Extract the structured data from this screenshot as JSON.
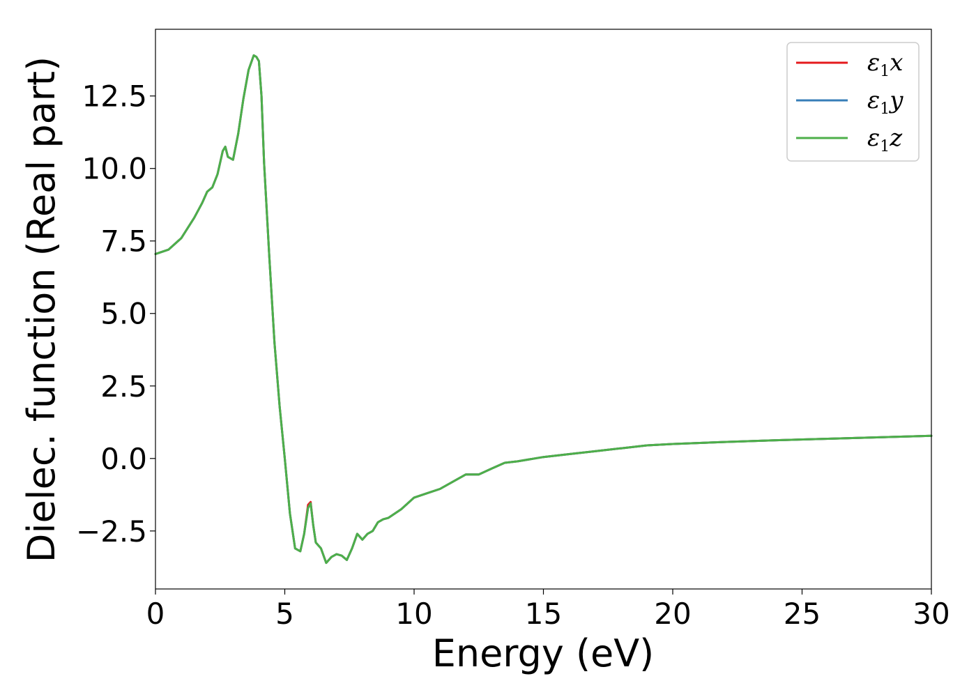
{
  "chart_data": {
    "type": "line",
    "title": "",
    "xlabel": "Energy (eV)",
    "ylabel": "Dielec. function (Real part)",
    "xlim": [
      0,
      30
    ],
    "ylim": [
      -4.5,
      14.8
    ],
    "xticks": [
      0,
      5,
      10,
      15,
      20,
      25,
      30
    ],
    "xtick_labels": [
      "0",
      "5",
      "10",
      "15",
      "20",
      "25",
      "30"
    ],
    "yticks": [
      -2.5,
      0.0,
      2.5,
      5.0,
      7.5,
      10.0,
      12.5
    ],
    "ytick_labels": [
      "−2.5",
      "0.0",
      "2.5",
      "5.0",
      "7.5",
      "10.0",
      "12.5"
    ],
    "grid": false,
    "legend_position": "top-right",
    "x": [
      0,
      0.5,
      1.0,
      1.5,
      1.8,
      2.0,
      2.2,
      2.4,
      2.6,
      2.7,
      2.8,
      3.0,
      3.2,
      3.4,
      3.6,
      3.8,
      3.9,
      4.0,
      4.1,
      4.2,
      4.4,
      4.6,
      4.8,
      5.0,
      5.2,
      5.4,
      5.6,
      5.75,
      5.9,
      6.0,
      6.1,
      6.2,
      6.4,
      6.6,
      6.8,
      7.0,
      7.2,
      7.4,
      7.6,
      7.8,
      8.0,
      8.2,
      8.4,
      8.6,
      8.8,
      9.0,
      9.5,
      10.0,
      10.5,
      11.0,
      11.5,
      12.0,
      12.5,
      13.0,
      13.5,
      14.0,
      15.0,
      16.0,
      17.0,
      18.0,
      19.0,
      20.0,
      22.0,
      24.0,
      26.0,
      28.0,
      30.0
    ],
    "series": [
      {
        "name": "ε₁x",
        "color": "#e41a1c",
        "values": [
          7.05,
          7.2,
          7.6,
          8.3,
          8.8,
          9.2,
          9.35,
          9.8,
          10.6,
          10.75,
          10.4,
          10.3,
          11.2,
          12.4,
          13.4,
          13.9,
          13.85,
          13.7,
          12.5,
          10.2,
          7.0,
          4.0,
          1.8,
          0.0,
          -1.9,
          -3.1,
          -3.2,
          -2.6,
          -1.6,
          -1.5,
          -2.3,
          -2.9,
          -3.1,
          -3.6,
          -3.4,
          -3.3,
          -3.35,
          -3.5,
          -3.1,
          -2.6,
          -2.8,
          -2.6,
          -2.5,
          -2.2,
          -2.1,
          -2.05,
          -1.75,
          -1.35,
          -1.2,
          -1.05,
          -0.8,
          -0.55,
          -0.55,
          -0.35,
          -0.15,
          -0.1,
          0.05,
          0.15,
          0.25,
          0.35,
          0.45,
          0.5,
          0.57,
          0.63,
          0.68,
          0.73,
          0.78
        ]
      },
      {
        "name": "ε₁y",
        "color": "#377eb8",
        "values": [
          7.05,
          7.2,
          7.6,
          8.3,
          8.8,
          9.2,
          9.35,
          9.8,
          10.6,
          10.75,
          10.4,
          10.3,
          11.2,
          12.4,
          13.4,
          13.9,
          13.85,
          13.7,
          12.5,
          10.2,
          7.0,
          4.0,
          1.8,
          0.0,
          -1.9,
          -3.1,
          -3.2,
          -2.6,
          -1.7,
          -1.55,
          -2.3,
          -2.9,
          -3.1,
          -3.6,
          -3.4,
          -3.3,
          -3.35,
          -3.5,
          -3.1,
          -2.6,
          -2.8,
          -2.6,
          -2.5,
          -2.2,
          -2.1,
          -2.05,
          -1.75,
          -1.35,
          -1.2,
          -1.05,
          -0.8,
          -0.55,
          -0.55,
          -0.35,
          -0.15,
          -0.1,
          0.05,
          0.15,
          0.25,
          0.35,
          0.45,
          0.5,
          0.57,
          0.63,
          0.68,
          0.73,
          0.78
        ]
      },
      {
        "name": "ε₁z",
        "color": "#4daf4a",
        "values": [
          7.05,
          7.2,
          7.6,
          8.3,
          8.8,
          9.2,
          9.35,
          9.8,
          10.6,
          10.75,
          10.4,
          10.3,
          11.2,
          12.4,
          13.4,
          13.9,
          13.85,
          13.7,
          12.5,
          10.2,
          7.0,
          4.0,
          1.8,
          0.0,
          -1.9,
          -3.1,
          -3.2,
          -2.6,
          -1.7,
          -1.55,
          -2.3,
          -2.9,
          -3.1,
          -3.6,
          -3.4,
          -3.3,
          -3.35,
          -3.5,
          -3.1,
          -2.6,
          -2.8,
          -2.6,
          -2.5,
          -2.2,
          -2.1,
          -2.05,
          -1.75,
          -1.35,
          -1.2,
          -1.05,
          -0.8,
          -0.55,
          -0.55,
          -0.35,
          -0.15,
          -0.1,
          0.05,
          0.15,
          0.25,
          0.35,
          0.45,
          0.5,
          0.57,
          0.63,
          0.68,
          0.73,
          0.78
        ]
      }
    ],
    "legend": [
      {
        "base": "ε",
        "sub": "1",
        "axis": "x"
      },
      {
        "base": "ε",
        "sub": "1",
        "axis": "y"
      },
      {
        "base": "ε",
        "sub": "1",
        "axis": "z"
      }
    ]
  }
}
